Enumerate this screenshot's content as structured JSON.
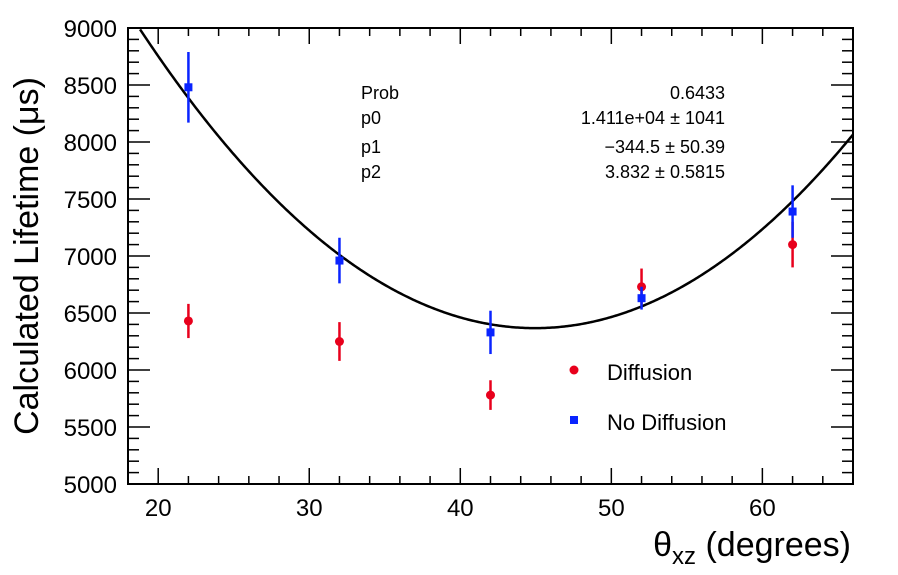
{
  "chart_data": {
    "type": "scatter",
    "xlabel_main": "θ",
    "xlabel_sub": "xz",
    "xlabel_rest": " (degrees)",
    "ylabel": "Calculated Lifetime (μs)",
    "xlim": [
      18,
      66
    ],
    "ylim": [
      5000,
      9000
    ],
    "x_ticks": [
      "20",
      "30",
      "40",
      "50",
      "60"
    ],
    "y_ticks": [
      "5000",
      "5500",
      "6000",
      "6500",
      "7000",
      "7500",
      "8000",
      "8500",
      "9000"
    ],
    "series": [
      {
        "name": "Diffusion",
        "color": "#e8001c",
        "marker": "circle",
        "points": [
          {
            "x": 22,
            "y": 6430,
            "err": 150
          },
          {
            "x": 32,
            "y": 6250,
            "err": 170
          },
          {
            "x": 42,
            "y": 5780,
            "err": 130
          },
          {
            "x": 52,
            "y": 6730,
            "err": 160
          },
          {
            "x": 62,
            "y": 7100,
            "err": 200
          }
        ]
      },
      {
        "name": "No Diffusion",
        "color": "#0a24ff",
        "marker": "square",
        "points": [
          {
            "x": 22,
            "y": 8480,
            "err": 310
          },
          {
            "x": 32,
            "y": 6960,
            "err": 200
          },
          {
            "x": 42,
            "y": 6330,
            "err": 190
          },
          {
            "x": 52,
            "y": 6630,
            "err": 100
          },
          {
            "x": 62,
            "y": 7390,
            "err": 230
          }
        ]
      }
    ],
    "fit": {
      "function": "p0 + p1*x + p2*x^2",
      "p0": 14110,
      "p1": -344.5,
      "p2": 3.832,
      "color": "#000000"
    },
    "stats_box": {
      "rows": [
        {
          "label": "Prob",
          "value": "0.6433"
        },
        {
          "label": "p0",
          "value": "1.411e+04 ±  1041"
        },
        {
          "label": "p1",
          "value": "−344.5 ± 50.39"
        },
        {
          "label": "p2",
          "value": "3.832 ± 0.5815"
        }
      ]
    },
    "legend": {
      "placement": "bottom-right",
      "entries": [
        {
          "label": "Diffusion",
          "color": "#e8001c",
          "marker": "circle"
        },
        {
          "label": "No Diffusion",
          "color": "#0a24ff",
          "marker": "square"
        }
      ]
    },
    "grid": false
  }
}
